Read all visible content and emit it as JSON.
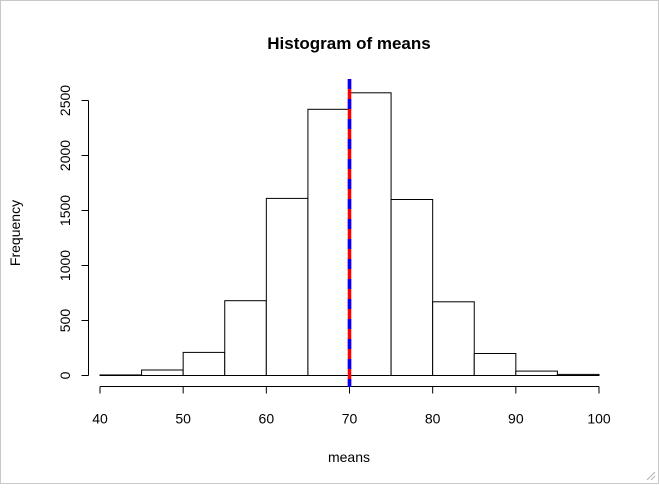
{
  "chart_data": {
    "type": "bar",
    "title": "Histogram of means",
    "xlabel": "means",
    "ylabel": "Frequency",
    "bins": [
      {
        "from": 40,
        "to": 45,
        "count": 5
      },
      {
        "from": 45,
        "to": 50,
        "count": 50
      },
      {
        "from": 50,
        "to": 55,
        "count": 210
      },
      {
        "from": 55,
        "to": 60,
        "count": 680
      },
      {
        "from": 60,
        "to": 65,
        "count": 1610
      },
      {
        "from": 65,
        "to": 70,
        "count": 2420
      },
      {
        "from": 70,
        "to": 75,
        "count": 2570
      },
      {
        "from": 75,
        "to": 80,
        "count": 1600
      },
      {
        "from": 80,
        "to": 85,
        "count": 670
      },
      {
        "from": 85,
        "to": 90,
        "count": 200
      },
      {
        "from": 90,
        "to": 95,
        "count": 40
      },
      {
        "from": 95,
        "to": 100,
        "count": 10
      }
    ],
    "xlim": [
      40,
      100
    ],
    "ylim": [
      0,
      2500
    ],
    "x_ticks": [
      40,
      50,
      60,
      70,
      80,
      90,
      100
    ],
    "y_ticks": [
      0,
      500,
      1000,
      1500,
      2000,
      2500
    ],
    "vlines": [
      {
        "x": 70,
        "color": "#ff0000",
        "style": "solid"
      },
      {
        "x": 70,
        "color": "#0000ff",
        "style": "dashed"
      }
    ],
    "bar_fill": "#ffffff",
    "bar_stroke": "#000000"
  }
}
